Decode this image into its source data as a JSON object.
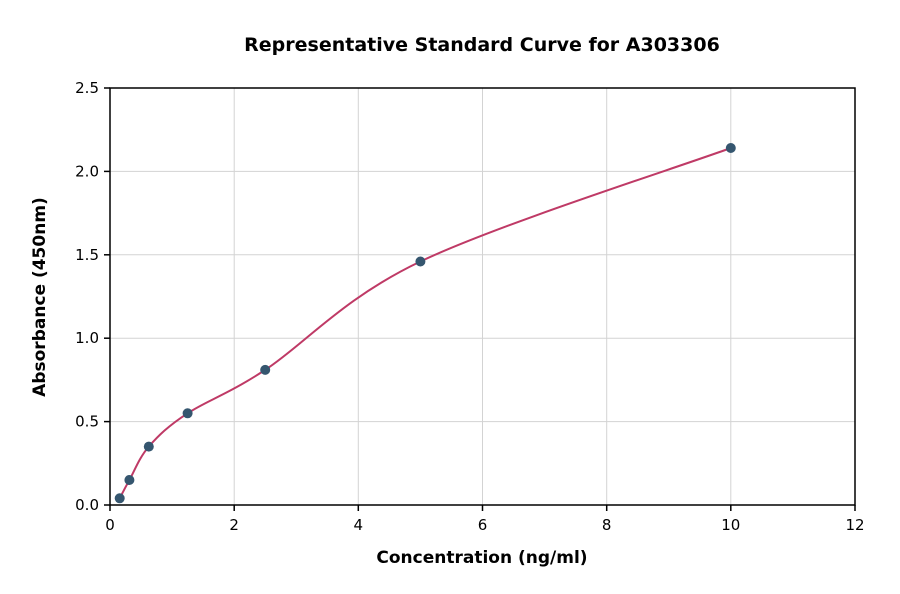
{
  "figure": {
    "background": "#ffffff"
  },
  "chart_data": {
    "type": "scatter",
    "title": "Representative Standard Curve for A303306",
    "xlabel": "Concentration (ng/ml)",
    "ylabel": "Absorbance (450nm)",
    "xlim": [
      0,
      12
    ],
    "ylim": [
      0,
      2.5
    ],
    "xticks": [
      0,
      2,
      4,
      6,
      8,
      10,
      12
    ],
    "xtick_labels": [
      "0",
      "2",
      "4",
      "6",
      "8",
      "10",
      "12"
    ],
    "yticks": [
      0,
      0.5,
      1,
      1.5,
      2,
      2.5
    ],
    "ytick_labels": [
      "0.0",
      "0.5",
      "1.0",
      "1.5",
      "2.0",
      "2.5"
    ],
    "grid": true,
    "legend": "none",
    "points": [
      {
        "x": 0.156,
        "y": 0.04
      },
      {
        "x": 0.313,
        "y": 0.15
      },
      {
        "x": 0.625,
        "y": 0.35
      },
      {
        "x": 1.25,
        "y": 0.55
      },
      {
        "x": 2.5,
        "y": 0.81
      },
      {
        "x": 5,
        "y": 1.46
      },
      {
        "x": 10,
        "y": 2.14
      }
    ],
    "colors": {
      "point": "#35566f",
      "curve": "#bf3a66",
      "grid": "#d3d3d3",
      "axis": "#000000",
      "background": "#ffffff"
    }
  }
}
